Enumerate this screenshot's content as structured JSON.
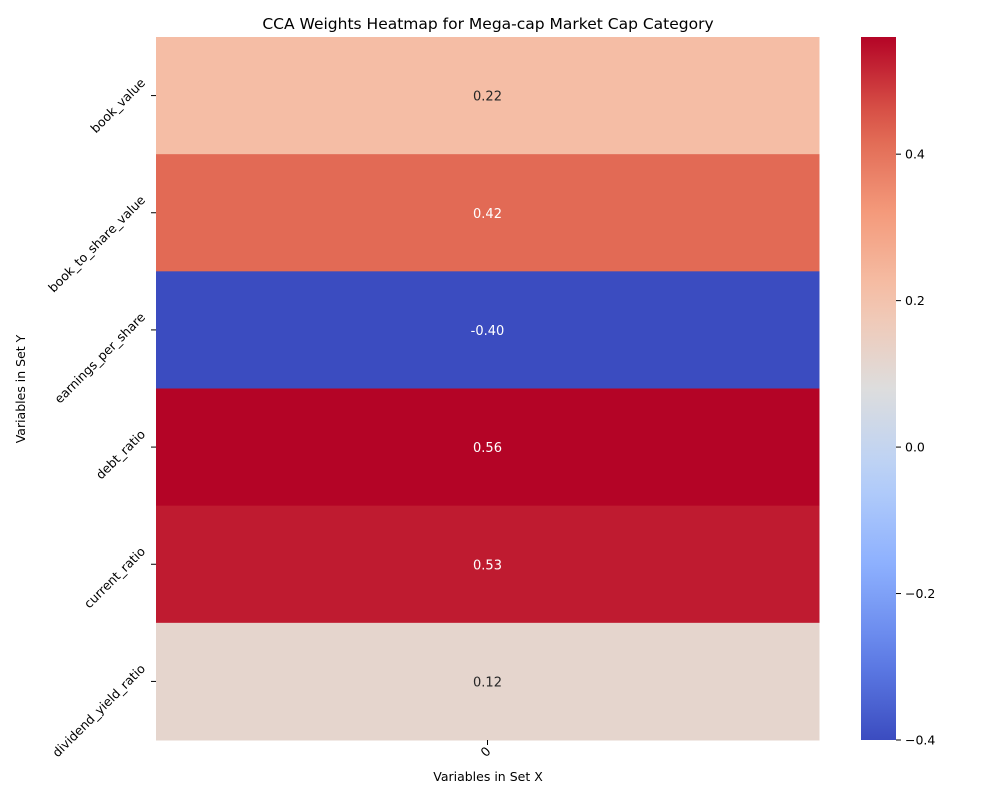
{
  "chart_data": {
    "type": "heatmap",
    "title": "CCA Weights Heatmap for Mega-cap Market Cap Category",
    "xlabel": "Variables in Set X",
    "ylabel": "Variables in Set Y",
    "x_categories": [
      "0"
    ],
    "y_categories": [
      "book_value",
      "book_to_share_value",
      "earnings_per_share",
      "debt_ratio",
      "current_ratio",
      "dividend_yield_ratio"
    ],
    "values": [
      [
        0.22
      ],
      [
        0.42
      ],
      [
        -0.4
      ],
      [
        0.56
      ],
      [
        0.53
      ],
      [
        0.12
      ]
    ],
    "value_labels": [
      "0.22",
      "0.42",
      "-0.40",
      "0.56",
      "0.53",
      "0.12"
    ],
    "colormap": "coolwarm",
    "vmin": -0.4,
    "vmax": 0.56,
    "colorbar_ticks": [
      -0.4,
      -0.2,
      0.0,
      0.2,
      0.4
    ],
    "colorbar_tick_labels": [
      "−0.4",
      "−0.2",
      "0.0",
      "0.2",
      "0.4"
    ],
    "colors": {
      "low": "#3b4cc0",
      "mid": "#dddddd",
      "high": "#b40426"
    }
  }
}
